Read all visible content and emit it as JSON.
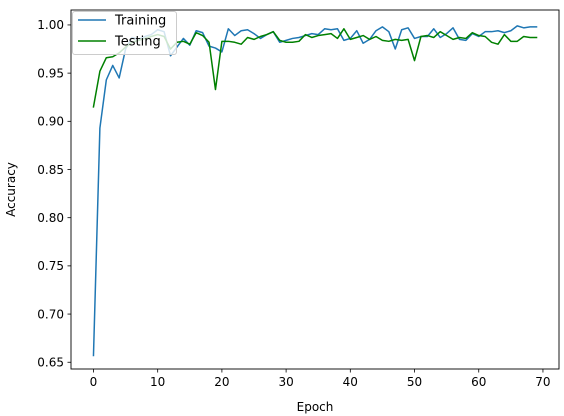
{
  "chart_data": {
    "type": "line",
    "xlabel": "Epoch",
    "ylabel": "Accuracy",
    "xlim": [
      -3.5,
      72.5
    ],
    "ylim": [
      0.643,
      1.0155
    ],
    "xticks": [
      0,
      10,
      20,
      30,
      40,
      50,
      60,
      70
    ],
    "yticks": [
      0.65,
      0.7,
      0.75,
      0.8,
      0.85,
      0.9,
      0.95,
      1.0
    ],
    "ytick_labels": [
      "0.65",
      "0.70",
      "0.75",
      "0.80",
      "0.85",
      "0.90",
      "0.95",
      "1.00"
    ],
    "grid": false,
    "legend_position": "top-left",
    "x": [
      0,
      1,
      2,
      3,
      4,
      5,
      6,
      7,
      8,
      9,
      10,
      11,
      12,
      13,
      14,
      15,
      16,
      17,
      18,
      19,
      20,
      21,
      22,
      23,
      24,
      25,
      26,
      27,
      28,
      29,
      30,
      31,
      32,
      33,
      34,
      35,
      36,
      37,
      38,
      39,
      40,
      41,
      42,
      43,
      44,
      45,
      46,
      47,
      48,
      49,
      50,
      51,
      52,
      53,
      54,
      55,
      56,
      57,
      58,
      59,
      60,
      61,
      62,
      63,
      64,
      65,
      66,
      67,
      68,
      69
    ],
    "series": [
      {
        "name": "Training",
        "color": "#1f77b4",
        "values": [
          0.657,
          0.893,
          0.943,
          0.958,
          0.945,
          0.975,
          0.987,
          0.985,
          0.988,
          0.99,
          0.995,
          0.993,
          0.968,
          0.977,
          0.986,
          0.979,
          0.994,
          0.992,
          0.978,
          0.976,
          0.972,
          0.996,
          0.989,
          0.994,
          0.995,
          0.991,
          0.986,
          0.99,
          0.993,
          0.982,
          0.984,
          0.986,
          0.987,
          0.989,
          0.991,
          0.99,
          0.996,
          0.995,
          0.996,
          0.984,
          0.986,
          0.994,
          0.981,
          0.985,
          0.994,
          0.998,
          0.993,
          0.975,
          0.995,
          0.997,
          0.986,
          0.988,
          0.988,
          0.996,
          0.987,
          0.991,
          0.997,
          0.985,
          0.984,
          0.991,
          0.988,
          0.993,
          0.993,
          0.994,
          0.992,
          0.994,
          0.999,
          0.997,
          0.998,
          0.998
        ]
      },
      {
        "name": "Testing",
        "color": "#008000",
        "values": [
          0.915,
          0.952,
          0.966,
          0.967,
          0.971,
          0.977,
          0.982,
          0.984,
          0.986,
          0.988,
          0.99,
          0.988,
          0.975,
          0.982,
          0.983,
          0.98,
          0.992,
          0.989,
          0.982,
          0.933,
          0.983,
          0.983,
          0.982,
          0.98,
          0.987,
          0.985,
          0.988,
          0.99,
          0.993,
          0.984,
          0.982,
          0.982,
          0.983,
          0.99,
          0.987,
          0.989,
          0.99,
          0.991,
          0.986,
          0.996,
          0.985,
          0.987,
          0.989,
          0.985,
          0.988,
          0.984,
          0.983,
          0.985,
          0.984,
          0.985,
          0.963,
          0.988,
          0.989,
          0.987,
          0.993,
          0.989,
          0.985,
          0.987,
          0.986,
          0.992,
          0.989,
          0.988,
          0.982,
          0.98,
          0.99,
          0.983,
          0.983,
          0.988,
          0.987,
          0.987
        ]
      }
    ]
  }
}
